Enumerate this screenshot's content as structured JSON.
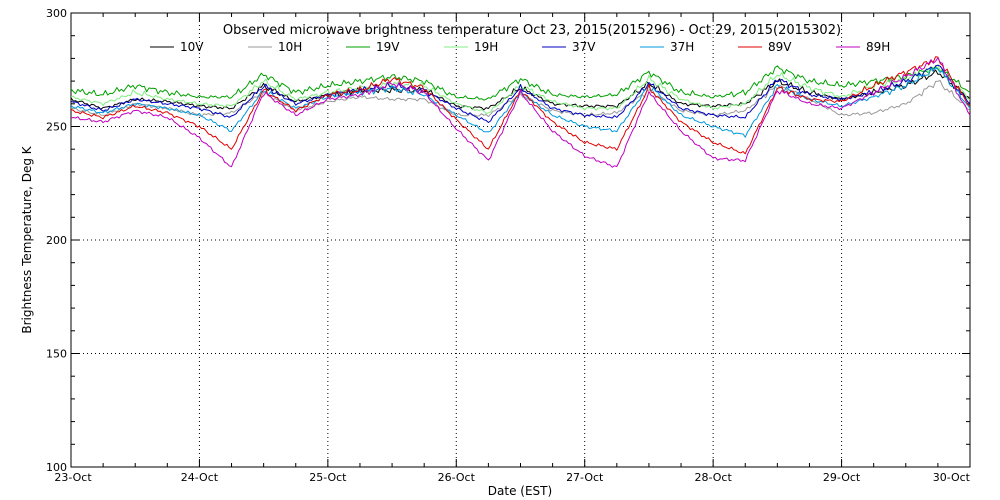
{
  "chart_data": {
    "type": "line",
    "title": "Observed microwave brightness temperature Oct 23, 2015(2015296) - Oct 29, 2015(2015302)",
    "xlabel": "Date (EST)",
    "ylabel": "Brightness Temperature, Deg K",
    "ylim": [
      100,
      300
    ],
    "yticks": [
      100,
      150,
      200,
      250,
      300
    ],
    "xlim": [
      "2015-10-23",
      "2015-10-30"
    ],
    "xticks": [
      "23-Oct",
      "24-Oct",
      "25-Oct",
      "26-Oct",
      "27-Oct",
      "28-Oct",
      "29-Oct",
      "30-Oct"
    ],
    "grid": true,
    "legend": "top",
    "x": [
      "2015-10-23 00:00",
      "2015-10-23 06:00",
      "2015-10-23 12:00",
      "2015-10-23 18:00",
      "2015-10-24 00:00",
      "2015-10-24 06:00",
      "2015-10-24 12:00",
      "2015-10-24 18:00",
      "2015-10-25 00:00",
      "2015-10-25 06:00",
      "2015-10-25 12:00",
      "2015-10-25 18:00",
      "2015-10-26 00:00",
      "2015-10-26 06:00",
      "2015-10-26 12:00",
      "2015-10-26 18:00",
      "2015-10-27 00:00",
      "2015-10-27 06:00",
      "2015-10-27 12:00",
      "2015-10-27 18:00",
      "2015-10-28 00:00",
      "2015-10-28 06:00",
      "2015-10-28 12:00",
      "2015-10-28 18:00",
      "2015-10-29 00:00",
      "2015-10-29 06:00",
      "2015-10-29 12:00",
      "2015-10-29 18:00",
      "2015-10-30 00:00"
    ],
    "series": [
      {
        "name": "10V",
        "color": "#000000",
        "values": [
          262,
          258,
          262,
          261,
          259,
          258,
          268,
          261,
          264,
          266,
          266,
          266,
          259,
          258,
          267,
          260,
          259,
          259,
          269,
          260,
          259,
          260,
          270,
          265,
          262,
          265,
          268,
          274,
          262
        ]
      },
      {
        "name": "10H",
        "color": "#999999",
        "values": [
          258,
          255,
          260,
          258,
          255,
          256,
          265,
          257,
          261,
          263,
          262,
          262,
          255,
          255,
          264,
          257,
          255,
          256,
          266,
          257,
          255,
          257,
          268,
          262,
          255,
          256,
          260,
          270,
          257
        ]
      },
      {
        "name": "19V",
        "color": "#00a000",
        "values": [
          266,
          264,
          268,
          265,
          263,
          263,
          273,
          265,
          268,
          270,
          272,
          270,
          263,
          262,
          271,
          264,
          263,
          264,
          274,
          265,
          263,
          265,
          276,
          270,
          268,
          270,
          272,
          276,
          265
        ]
      },
      {
        "name": "19H",
        "color": "#80ee80",
        "values": [
          263,
          260,
          265,
          262,
          260,
          259,
          270,
          262,
          265,
          267,
          269,
          268,
          260,
          256,
          268,
          261,
          258,
          258,
          271,
          262,
          258,
          260,
          273,
          267,
          263,
          268,
          271,
          276,
          262
        ]
      },
      {
        "name": "37V",
        "color": "#0000c0",
        "values": [
          261,
          257,
          262,
          260,
          258,
          254,
          268,
          260,
          264,
          266,
          268,
          266,
          258,
          252,
          267,
          258,
          255,
          254,
          269,
          258,
          255,
          254,
          271,
          264,
          262,
          265,
          270,
          277,
          260
        ]
      },
      {
        "name": "37H",
        "color": "#0099dd",
        "values": [
          259,
          256,
          260,
          258,
          255,
          248,
          266,
          258,
          263,
          265,
          267,
          264,
          255,
          247,
          265,
          255,
          250,
          248,
          268,
          255,
          250,
          246,
          268,
          262,
          259,
          263,
          268,
          276,
          258
        ]
      },
      {
        "name": "89V",
        "color": "#e00000",
        "values": [
          257,
          254,
          259,
          256,
          250,
          240,
          266,
          257,
          264,
          266,
          271,
          267,
          253,
          240,
          266,
          252,
          243,
          240,
          267,
          252,
          243,
          238,
          267,
          262,
          261,
          268,
          274,
          280,
          259
        ]
      },
      {
        "name": "89H",
        "color": "#c000c0",
        "values": [
          254,
          252,
          257,
          254,
          245,
          232,
          265,
          255,
          262,
          264,
          269,
          265,
          249,
          235,
          265,
          248,
          237,
          232,
          265,
          248,
          236,
          235,
          266,
          260,
          258,
          265,
          272,
          280,
          255
        ]
      }
    ]
  }
}
